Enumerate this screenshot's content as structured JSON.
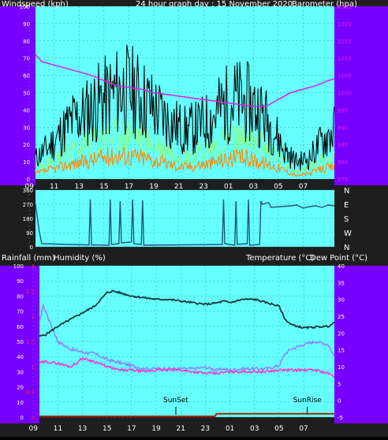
{
  "page": {
    "top_left_label": "Windspeed (kph)",
    "top_title": "24 hour graph day : 15 November 2020",
    "top_right_label": "Barometer (hpa)",
    "bottom_left_label_1": "Rainfall (mm)",
    "bottom_left_label_2": "Humidity (%)",
    "bottom_right_label_1": "Temperature (°C)",
    "bottom_right_label_2": "Dew Point (°C)"
  },
  "colors": {
    "panel_bg": "#66ffff",
    "left_margin": "#7700ff",
    "right_margin": "#7700ff",
    "page_bg": "#1e1e1e",
    "wind_gust": "#000000",
    "wind_avg": "#88ff88",
    "wind_min": "#ff8800",
    "barometer": "#dd22dd",
    "direction": "#225577",
    "temperature": "#1a3a3a",
    "humidity": "#8888ff",
    "dewpoint": "#ff33cc",
    "rainfall": "#aa2200",
    "axis_text_left": "#ffffff",
    "axis_text_right_wind": "#dd22dd",
    "axis_text_right_temp": "#ffffff",
    "axis_text_left_rain": "#ff2222"
  },
  "time_axis": {
    "labels": [
      "11",
      "13",
      "15",
      "17",
      "19",
      "21",
      "23",
      "01",
      "03",
      "05",
      "07",
      "09"
    ],
    "start_hour": 9.5,
    "end_hour": 33.5
  },
  "chart_data": [
    {
      "type": "line",
      "title": "24 hour graph day : 15 November 2020",
      "left_label": "Windspeed (kph)",
      "right_label": "Barometer (hpa)",
      "left_ticks": [
        0,
        10,
        20,
        30,
        40,
        50,
        60,
        70,
        80,
        90,
        100
      ],
      "right_ticks": [
        975,
        980,
        985,
        990,
        995,
        1000,
        1005,
        1010,
        1015,
        1020,
        1025
      ],
      "ylim_left": [
        0,
        100
      ],
      "ylim_right": [
        975,
        1025
      ],
      "x_ticks": [
        "11",
        "13",
        "15",
        "17",
        "19",
        "21",
        "23",
        "01",
        "03",
        "05",
        "07",
        "09"
      ],
      "series": [
        {
          "name": "Wind gust",
          "axis": "left",
          "hours": [
            9.5,
            10.5,
            11.5,
            12.5,
            13.5,
            14.5,
            15.5,
            16.5,
            17.5,
            18.5,
            19.5,
            20.5,
            21.5,
            22.5,
            23.5,
            24.5,
            25.5,
            26.5,
            27.5,
            28.5,
            29.5,
            30.5,
            31.5,
            32.5,
            33.5
          ],
          "values": [
            12,
            18,
            26,
            34,
            38,
            44,
            48,
            52,
            50,
            44,
            38,
            32,
            28,
            30,
            34,
            42,
            46,
            44,
            40,
            30,
            16,
            10,
            12,
            22,
            28
          ]
        },
        {
          "name": "Wind average",
          "axis": "left",
          "hours": [
            9.5,
            10.5,
            11.5,
            12.5,
            13.5,
            14.5,
            15.5,
            16.5,
            17.5,
            18.5,
            19.5,
            20.5,
            21.5,
            22.5,
            23.5,
            24.5,
            25.5,
            26.5,
            27.5,
            28.5,
            29.5,
            30.5,
            31.5,
            32.5,
            33.5
          ],
          "values": [
            6,
            9,
            13,
            17,
            19,
            22,
            24,
            26,
            25,
            22,
            19,
            16,
            14,
            15,
            17,
            21,
            23,
            22,
            20,
            15,
            9,
            5,
            6,
            11,
            14
          ]
        },
        {
          "name": "Wind minimum",
          "axis": "left",
          "hours": [
            9.5,
            10.5,
            11.5,
            12.5,
            13.5,
            14.5,
            15.5,
            16.5,
            17.5,
            18.5,
            19.5,
            20.5,
            21.5,
            22.5,
            23.5,
            24.5,
            25.5,
            26.5,
            27.5,
            28.5,
            29.5,
            30.5,
            31.5,
            32.5,
            33.5
          ],
          "values": [
            3,
            5,
            7,
            9,
            10,
            12,
            13,
            14,
            13,
            12,
            10,
            8,
            7,
            8,
            9,
            11,
            12,
            12,
            10,
            8,
            5,
            2,
            3,
            6,
            7
          ]
        },
        {
          "name": "Barometer",
          "axis": "right",
          "hours": [
            9.5,
            10,
            11,
            12,
            13,
            14,
            15,
            16,
            17,
            18,
            19,
            20,
            21,
            22,
            23,
            24,
            25,
            26,
            27,
            28,
            29,
            30,
            31,
            32,
            33,
            33.5
          ],
          "values": [
            1011,
            1009,
            1008,
            1007,
            1006,
            1005,
            1003.5,
            1002,
            1001.5,
            1001,
            1000,
            999.5,
            999,
            998.5,
            998,
            997.5,
            997,
            996.5,
            996,
            996,
            998,
            1000,
            1001,
            1002,
            1003.5,
            1004
          ]
        }
      ]
    },
    {
      "type": "line",
      "title": "",
      "right_ticks": [
        "N",
        "W",
        "S",
        "E",
        "N"
      ],
      "left_ticks": [
        0,
        90,
        180,
        270,
        360
      ],
      "ylim": [
        0,
        360
      ],
      "x_ticks": [
        "11",
        "13",
        "15",
        "17",
        "19",
        "21",
        "23",
        "01",
        "03",
        "05",
        "07",
        "09"
      ],
      "series": [
        {
          "name": "Wind direction",
          "hours": [
            9.5,
            9.8,
            10,
            12,
            13.8,
            13.9,
            14,
            15.4,
            15.5,
            15.6,
            16.2,
            16.3,
            16.4,
            17.2,
            17.3,
            17.4,
            18,
            18.1,
            18.2,
            24.5,
            24.6,
            24.7,
            25.5,
            25.6,
            25.7,
            26.5,
            26.6,
            26.7,
            27.5,
            27.6,
            27.7,
            28.2,
            28.3,
            28.4,
            30,
            30.5,
            31,
            31.5,
            32,
            32.5,
            33,
            33.5
          ],
          "values": [
            270,
            100,
            20,
            15,
            12,
            300,
            12,
            10,
            300,
            15,
            20,
            290,
            25,
            30,
            300,
            20,
            15,
            295,
            10,
            15,
            300,
            20,
            10,
            290,
            15,
            20,
            300,
            10,
            15,
            290,
            270,
            280,
            270,
            250,
            260,
            265,
            245,
            255,
            260,
            250,
            265,
            260
          ]
        }
      ]
    },
    {
      "type": "line",
      "title": "",
      "left_label": "Rainfall (mm)  Humidity (%)",
      "right_label": "Temperature (°C) Dew Point (°C)",
      "left_ticks": [
        0,
        10,
        20,
        30,
        40,
        50,
        60,
        70,
        80,
        90,
        100
      ],
      "rain_ticks": [
        0,
        0.5,
        1,
        1.5,
        2,
        2.5,
        3
      ],
      "right_ticks": [
        -5,
        0,
        5,
        10,
        15,
        20,
        25,
        30,
        35,
        40
      ],
      "ylim_left": [
        0,
        100
      ],
      "ylim_right": [
        -5,
        40
      ],
      "x_ticks": [
        "11",
        "13",
        "15",
        "17",
        "19",
        "21",
        "23",
        "01",
        "03",
        "05",
        "07",
        "09"
      ],
      "annotations": [
        {
          "text": "SunSet",
          "hour": 20.6
        },
        {
          "text": "SunRise",
          "hour": 31.3
        }
      ],
      "series": [
        {
          "name": "Temperature",
          "axis": "right",
          "hours": [
            9.5,
            10,
            11,
            12,
            13,
            14,
            15,
            15.5,
            16,
            17,
            18,
            19,
            20,
            21,
            22,
            23,
            24,
            24.5,
            25,
            26,
            27,
            28,
            29,
            29.5,
            30,
            31,
            32,
            33,
            33.5
          ],
          "values": [
            19,
            19.5,
            22,
            24,
            26,
            28,
            32,
            32.5,
            32,
            31,
            30.5,
            30,
            30,
            29.5,
            29,
            28.5,
            29,
            29.5,
            29,
            30,
            30,
            29,
            28,
            24,
            22.5,
            21.5,
            21.8,
            22,
            23
          ]
        },
        {
          "name": "Humidity",
          "axis": "left",
          "hours": [
            9.5,
            9.8,
            10.2,
            11,
            12,
            13,
            14,
            15,
            16,
            17,
            18,
            19,
            20,
            21,
            22,
            23,
            24,
            24.5,
            25,
            26,
            27,
            28,
            29,
            29.5,
            30,
            31,
            32,
            33,
            33.5
          ],
          "values": [
            62,
            74,
            66,
            50,
            45,
            43,
            42,
            38,
            36,
            34,
            32,
            32,
            32,
            32,
            32,
            33,
            31,
            32,
            31,
            32,
            32,
            32,
            34,
            42,
            45,
            48,
            50,
            48,
            40
          ]
        },
        {
          "name": "Dew Point",
          "axis": "right",
          "hours": [
            9.5,
            10,
            11,
            12,
            12.5,
            13,
            14,
            15,
            16,
            17,
            18,
            19,
            20,
            21,
            22,
            23,
            24,
            25,
            26,
            27,
            28,
            29,
            30,
            31,
            32,
            33,
            33.5
          ],
          "values": [
            11,
            11.5,
            11,
            10,
            11,
            12.5,
            11.5,
            10,
            9,
            9,
            8.5,
            9,
            9,
            9,
            8.5,
            8,
            8,
            8.5,
            8.5,
            8.5,
            8.5,
            9,
            9,
            9,
            9,
            8,
            7
          ]
        },
        {
          "name": "Rainfall",
          "axis": "rain",
          "hours": [
            9.5,
            23.8,
            23.9,
            33.5
          ],
          "values": [
            0,
            0,
            0.05,
            0.05
          ]
        }
      ]
    }
  ]
}
